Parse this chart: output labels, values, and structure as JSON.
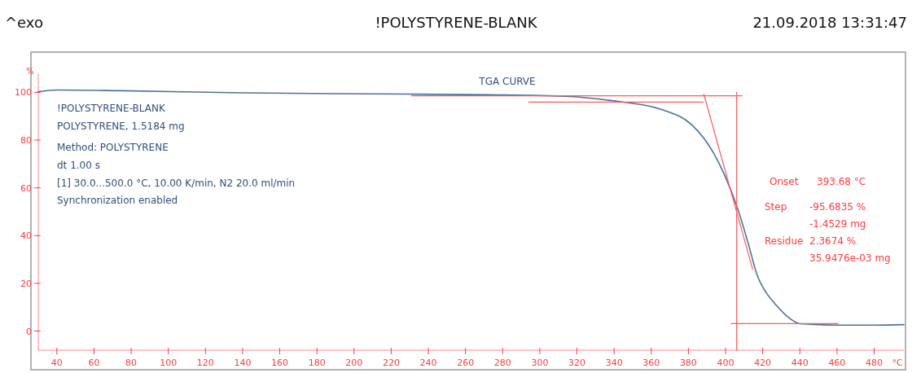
{
  "chart_data": {
    "type": "line",
    "title": "!POLYSTYRENE-BLANK",
    "xlabel": "°C",
    "ylabel": "%",
    "xlim": [
      30,
      496
    ],
    "ylim": [
      -8,
      108
    ],
    "xticks": [
      40,
      60,
      80,
      100,
      120,
      140,
      160,
      180,
      200,
      220,
      240,
      260,
      280,
      300,
      320,
      340,
      360,
      380,
      400,
      420,
      440,
      460,
      480
    ],
    "yticks": [
      0,
      20,
      40,
      60,
      80,
      100
    ],
    "grid": false,
    "marker": "none",
    "line_style": "solid",
    "series": [
      {
        "color": "#4d7199",
        "x": [
          30,
          40,
          75,
          140,
          228,
          272,
          316,
          338,
          367,
          382,
          393.5,
          400.5,
          406.7,
          412.4,
          417,
          422,
          426.8,
          434.3,
          440,
          460,
          480,
          496
        ],
        "values": [
          100.3,
          101,
          100.7,
          99.8,
          99.3,
          99,
          98.3,
          96.6,
          92.5,
          86.3,
          74.7,
          63.5,
          50.9,
          36.2,
          23.5,
          16,
          11.3,
          5.5,
          3.1,
          2.5,
          2.5,
          2.7
        ]
      },
      {
        "color": "#ff5a5a",
        "x": [
          231,
          409
        ],
        "values": [
          98.6,
          98.6
        ]
      },
      {
        "color": "#ff5a5a",
        "x": [
          294,
          388
        ],
        "values": [
          95.9,
          95.9
        ]
      },
      {
        "color": "#ff5a5a",
        "x": [
          388.3,
          414.6
        ],
        "values": [
          99.3,
          25.9
        ]
      },
      {
        "color": "#ff5a5a",
        "x": [
          406,
          406
        ],
        "values": [
          100,
          -8
        ]
      },
      {
        "color": "#ff5a5a",
        "x": [
          403,
          460.6
        ],
        "values": [
          3.1,
          3.1
        ]
      }
    ],
    "annotations": [
      "^exo",
      "21.09.2018 13:31:47",
      "!POLYSTYRENE-BLANK",
      "POLYSTYRENE, 1.5184 mg",
      "Method: POLYSTYRENE",
      "dt 1.00 s",
      "[1] 30.0...500.0 °C, 10.00 K/min, N2 20.0 ml/min",
      "Synchronization enabled",
      "TGA CURVE",
      "Onset",
      "393.68 °C",
      "Step",
      "-95.6835 %",
      "-1.4529 mg",
      "Residue",
      "2.3674 %",
      "35.9476e-03 mg"
    ]
  }
}
